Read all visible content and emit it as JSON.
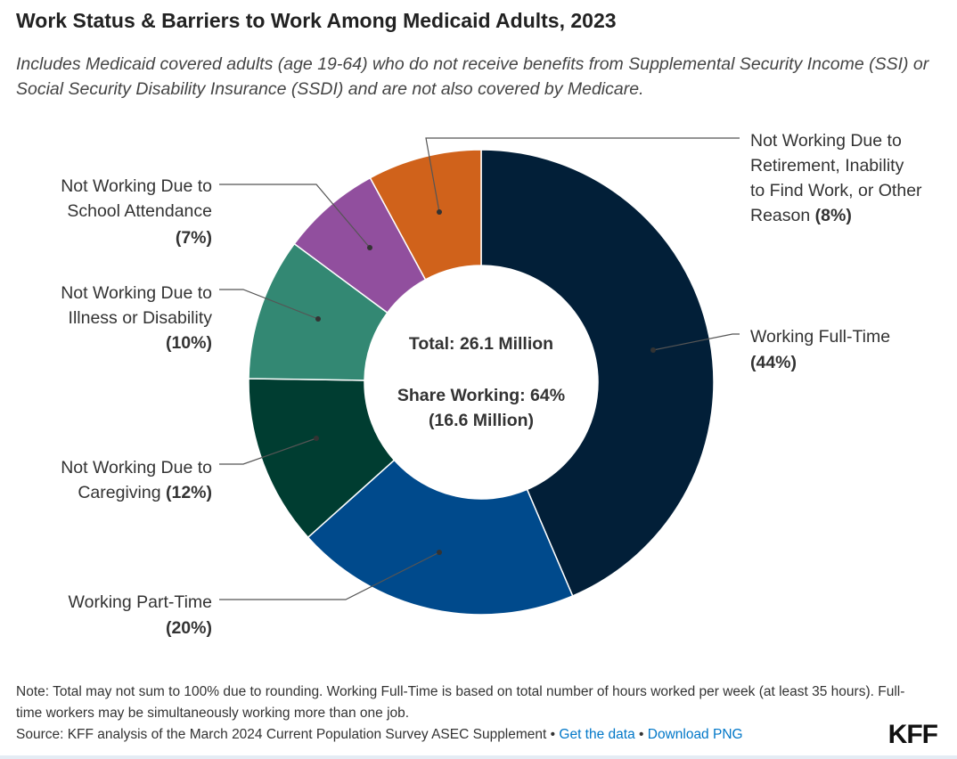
{
  "title": "Work Status & Barriers to Work Among Medicaid Adults, 2023",
  "subtitle": "Includes Medicaid covered adults (age 19-64) who do not receive benefits from Supplemental Security Income (SSI) or Social Security Disability Insurance (SSDI) and are not also covered by Medicare.",
  "chart_data": {
    "type": "pie",
    "variant": "donut",
    "title": "Work Status & Barriers to Work Among Medicaid Adults, 2023",
    "center_text": {
      "total": "Total: 26.1 Million",
      "share": "Share Working: 64%",
      "share_count": "(16.6 Million)"
    },
    "slices": [
      {
        "name": "Working Full-Time",
        "value": 44,
        "color": "#021f38",
        "label_lines": [
          "Working Full-Time"
        ],
        "pct_label": "(44%)"
      },
      {
        "name": "Working Part-Time",
        "value": 20,
        "color": "#004a8c",
        "label_lines": [
          "Working Part-Time"
        ],
        "pct_label": "(20%)"
      },
      {
        "name": "Not Working Due to Caregiving",
        "value": 12,
        "color": "#003d31",
        "label_lines": [
          "Not Working Due to",
          "Caregiving"
        ],
        "pct_label": "(12%)"
      },
      {
        "name": "Not Working Due to Illness or Disability",
        "value": 10,
        "color": "#338873",
        "label_lines": [
          "Not Working Due to",
          "Illness or Disability"
        ],
        "pct_label": "(10%)"
      },
      {
        "name": "Not Working Due to School Attendance",
        "value": 7,
        "color": "#914f9e",
        "label_lines": [
          "Not Working Due to",
          "School Attendance"
        ],
        "pct_label": "(7%)"
      },
      {
        "name": "Not Working Due to Retirement, Inability to Find Work, or Other Reason",
        "value": 8,
        "color": "#d0621b",
        "label_lines": [
          "Not Working Due to",
          "Retirement, Inability",
          "to Find Work, or Other",
          "Reason"
        ],
        "pct_label": "(8%)"
      }
    ]
  },
  "footer": {
    "note": "Note: Total may not sum to 100% due to rounding. Working Full-Time is based on total number of hours worked per week (at least 35 hours). Full-time workers may be simultaneously working more than one job.",
    "source": "Source: KFF analysis of the March 2024 Current Population Survey ASEC Supplement",
    "sep": " • ",
    "get_data": "Get the data",
    "download": "Download PNG",
    "logo": "KFF"
  }
}
